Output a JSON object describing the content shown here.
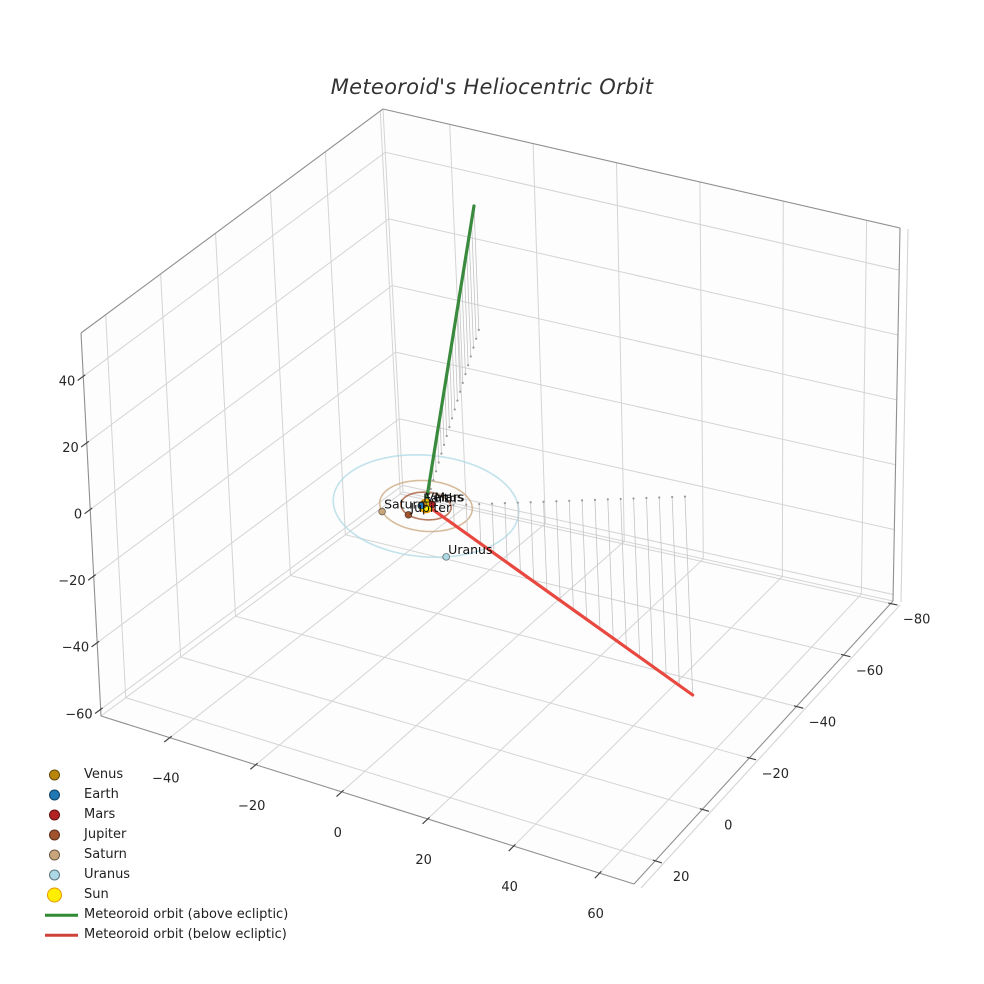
{
  "title": "Meteoroid's Heliocentric Orbit",
  "legend": {
    "position": "lower-left",
    "items": [
      {
        "label": "Venus",
        "type": "dot",
        "color": "#B8860B"
      },
      {
        "label": "Earth",
        "type": "dot",
        "color": "#1F77B4"
      },
      {
        "label": "Mars",
        "type": "dot",
        "color": "#B22222"
      },
      {
        "label": "Jupiter",
        "type": "dot",
        "color": "#A0522D"
      },
      {
        "label": "Saturn",
        "type": "dot",
        "color": "#C8A57B"
      },
      {
        "label": "Uranus",
        "type": "dot",
        "color": "#ADD8E6"
      },
      {
        "label": "Sun",
        "type": "dot-large",
        "color": "#FFEE00",
        "edge": "#E69500"
      },
      {
        "label": "Meteoroid orbit (above ecliptic)",
        "type": "line",
        "color": "#2F8A34"
      },
      {
        "label": "Meteoroid orbit (below ecliptic)",
        "type": "line",
        "color": "#CF423A"
      }
    ]
  },
  "chart_data": {
    "type": "line",
    "subtype": "3d-orbit-plot",
    "title": "Meteoroid's Heliocentric Orbit",
    "grid": true,
    "legend_position": "lower-left",
    "axes": {
      "x": {
        "ticks": [
          -40,
          -20,
          0,
          20,
          40,
          60
        ],
        "range": [
          -56,
          68
        ]
      },
      "y": {
        "ticks": [
          20,
          0,
          -20,
          -40,
          -60,
          -80
        ],
        "range": [
          -81,
          29
        ]
      },
      "z": {
        "ticks": [
          40,
          20,
          0,
          -20,
          -40,
          -60
        ],
        "range": [
          -62,
          53
        ]
      }
    },
    "planets": [
      {
        "name": "Venus",
        "orbit_radius_au": 0.72,
        "angle_deg": 205,
        "color": "#B8860B"
      },
      {
        "name": "Earth",
        "orbit_radius_au": 1.0,
        "angle_deg": 155,
        "color": "#1F77B4"
      },
      {
        "name": "Mars",
        "orbit_radius_au": 1.52,
        "angle_deg": -55,
        "color": "#B22222"
      },
      {
        "name": "Jupiter",
        "orbit_radius_au": 5.2,
        "angle_deg": 110,
        "color": "#A0522D"
      },
      {
        "name": "Saturn",
        "orbit_radius_au": 9.58,
        "angle_deg": 137,
        "color": "#C8A57B"
      },
      {
        "name": "Uranus",
        "orbit_radius_au": 19.2,
        "angle_deg": 53,
        "color": "#ADD8E6"
      }
    ],
    "sun": {
      "label": "Sun",
      "color": "#FFEE00",
      "edge_color": "#E69500"
    },
    "meteoroid_orbit": {
      "above_ecliptic": {
        "label": "Meteoroid orbit (above ecliptic)",
        "color": "#3A8A3E",
        "from_xyz": [
          -18,
          -66,
          40
        ],
        "to_xyz": [
          0,
          0.3,
          0
        ]
      },
      "below_ecliptic": {
        "label": "Meteoroid orbit (below ecliptic)",
        "color": "#E8483F",
        "from_xyz": [
          0.3,
          -0.2,
          0
        ],
        "to_xyz": [
          45,
          -30.5,
          -64
        ]
      },
      "drop_lines_per_branch": 20
    },
    "colors": {
      "grid": "#d4d4d4",
      "spine": "#8f8f8f",
      "tick": "#444444",
      "tick_text": "#262626",
      "drop_lines": "#c4c4c4",
      "drop_dots": "#9a9a9a",
      "planet_label_text": "#111111",
      "background": "#ffffff"
    }
  }
}
